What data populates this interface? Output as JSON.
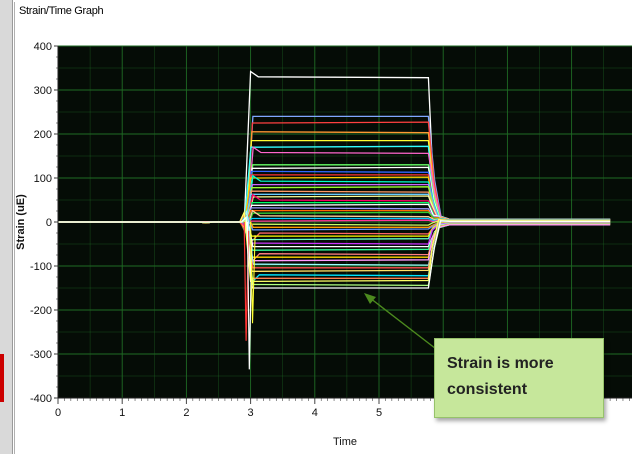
{
  "window": {
    "title": "Strain/Time Graph"
  },
  "callout": {
    "text": "Strain is more consistent"
  },
  "colors": {
    "plot_bg": "#050c06",
    "grid": "#1f6b24",
    "callout_bg": "#c6e79b",
    "arrow": "#4c8a1e"
  },
  "chart_data": {
    "type": "line",
    "title": "Strain/Time Graph",
    "xlabel": "Time",
    "ylabel": "Strain (uE)",
    "xlim": [
      0,
      9
    ],
    "ylim": [
      -400,
      400
    ],
    "x_ticks": [
      "0",
      "1",
      "2",
      "3",
      "4",
      "5"
    ],
    "y_ticks": [
      "400",
      "300",
      "200",
      "100",
      "0",
      "-100",
      "-200",
      "-300",
      "-400"
    ],
    "grid": true,
    "legend": "none",
    "pulse": {
      "onset": 2.9,
      "offset": 5.85,
      "end": 8.6
    },
    "series_levels": [
      330,
      240,
      225,
      205,
      185,
      170,
      158,
      130,
      122,
      115,
      107,
      100,
      93,
      85,
      78,
      70,
      63,
      57,
      50,
      44,
      38,
      32,
      26,
      20,
      14,
      8,
      2,
      -5,
      -12,
      -18,
      -25,
      -32,
      -40,
      -48,
      -56,
      -64,
      -72,
      -80,
      -88,
      -96,
      -104,
      -112,
      -120,
      -128,
      -135,
      -142,
      -150
    ],
    "series_colors": [
      "#ffffff",
      "#7fa8ff",
      "#ff4040",
      "#ff9933",
      "#ffff33",
      "#33ffff",
      "#ff66cc",
      "#66ff66",
      "#ffffff",
      "#3366ff",
      "#ff3333",
      "#ffcc00",
      "#00ffcc",
      "#cc66ff",
      "#99ff33",
      "#ff9966",
      "#66ccff",
      "#ffff99",
      "#ff0066",
      "#00ff66",
      "#ffffff",
      "#9999ff",
      "#ff6600",
      "#33cc33",
      "#ffcc99",
      "#00ccff",
      "#ff3399",
      "#ccff66",
      "#ff9900",
      "#6699ff",
      "#ff6666",
      "#ffff00",
      "#66ffcc",
      "#cc33ff",
      "#ffffff",
      "#33ff99",
      "#ff8080",
      "#ffd700",
      "#ff99ff",
      "#99ffff",
      "#ff5050",
      "#ffe066",
      "#00e5ff",
      "#ff7f50",
      "#ffff66",
      "#b0ff80",
      "#ffffff"
    ]
  }
}
